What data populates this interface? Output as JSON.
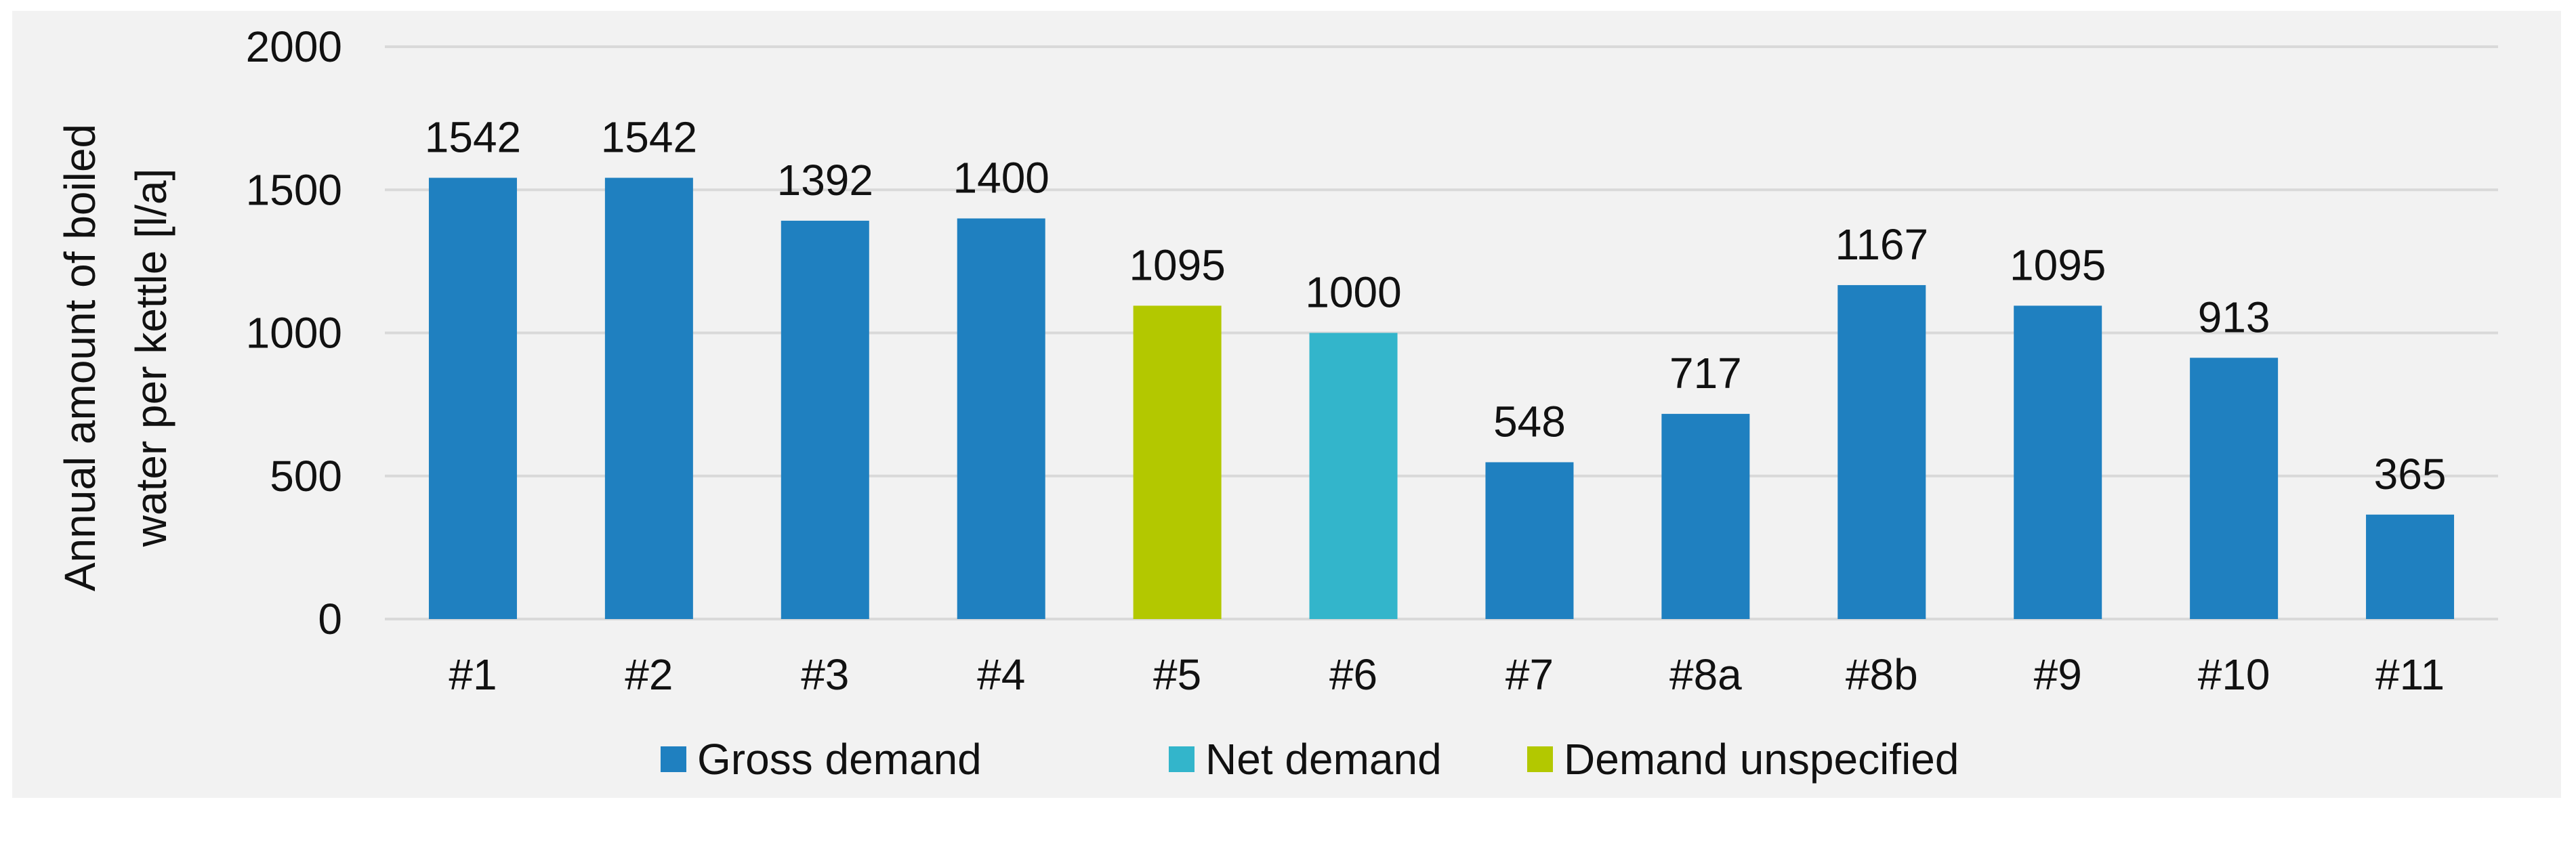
{
  "chart_data": {
    "type": "bar",
    "title": "",
    "xlabel": "",
    "ylabel_lines": [
      "Annual amount of boiled",
      "water  per kettle [l/a]"
    ],
    "ylim": [
      0,
      2000
    ],
    "yticks": [
      0,
      500,
      1000,
      1500,
      2000
    ],
    "grid": true,
    "legend_position": "bottom",
    "categories": [
      "#1",
      "#2",
      "#3",
      "#4",
      "#5",
      "#6",
      "#7",
      "#8a",
      "#8b",
      "#9",
      "#10",
      "#11"
    ],
    "values": [
      1542,
      1542,
      1392,
      1400,
      1095,
      1000,
      548,
      717,
      1167,
      1095,
      913,
      365
    ],
    "groups": [
      "gross",
      "gross",
      "gross",
      "gross",
      "unspecified",
      "net",
      "gross",
      "gross",
      "gross",
      "gross",
      "gross",
      "gross"
    ],
    "legend": [
      {
        "key": "gross",
        "name": "Gross demand",
        "color": "#1f80c0"
      },
      {
        "key": "net",
        "name": "Net demand",
        "color": "#33b5cb"
      },
      {
        "key": "unspecified",
        "name": "Demand unspecified",
        "color": "#b3c800"
      }
    ],
    "colors": {
      "background": "#f2f2f2",
      "grid": "#d9d9d9"
    }
  }
}
